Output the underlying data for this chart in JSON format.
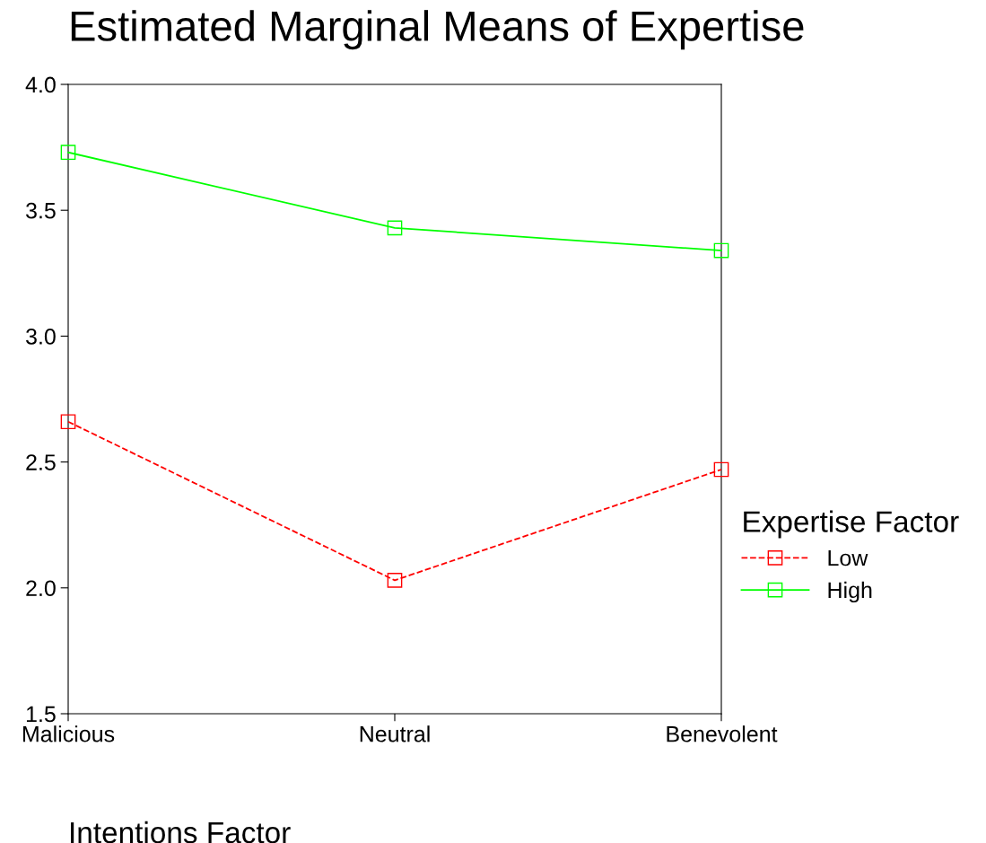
{
  "chart_data": {
    "type": "line",
    "title": "Estimated Marginal Means of Expertise",
    "xlabel": "Intentions Factor",
    "legend_title": "Expertise Factor",
    "categories": [
      "Malicious",
      "Neutral",
      "Benevolent"
    ],
    "series": [
      {
        "name": "Low",
        "color": "#ff0000",
        "line_style": "dashed",
        "values": [
          2.66,
          2.03,
          2.47
        ]
      },
      {
        "name": "High",
        "color": "#00ff00",
        "line_style": "solid",
        "values": [
          3.73,
          3.43,
          3.34
        ]
      }
    ],
    "ylim": [
      1.5,
      4.0
    ],
    "yticks": [
      {
        "value": 1.5,
        "label": "1.5"
      },
      {
        "value": 2.0,
        "label": "2.0"
      },
      {
        "value": 2.5,
        "label": "2.5"
      },
      {
        "value": 3.0,
        "label": "3.0"
      },
      {
        "value": 3.5,
        "label": "3.5"
      },
      {
        "value": 4.0,
        "label": "4.0"
      }
    ],
    "marker": "square",
    "legend": "right",
    "grid": false
  }
}
